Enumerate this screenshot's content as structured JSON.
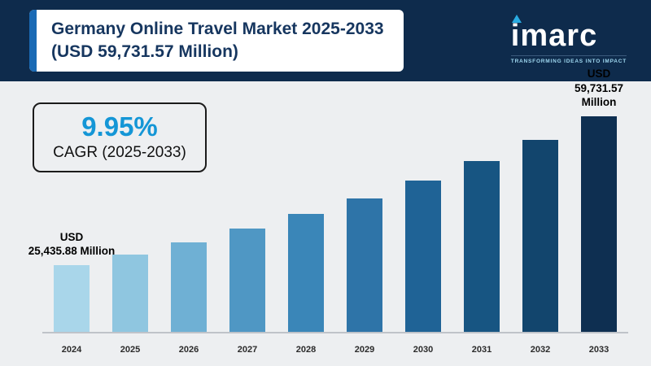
{
  "header": {
    "title_line1": "Germany Online Travel Market 2025-2033",
    "title_line2": "(USD 59,731.57 Million)",
    "logo": {
      "text": "imarc",
      "tagline": "TRANSFORMING IDEAS INTO IMPACT"
    }
  },
  "cagr": {
    "value": "9.95%",
    "label": "CAGR (2025-2033)"
  },
  "annotations": {
    "first_bar": [
      "USD",
      "25,435.88 Million"
    ],
    "last_bar": [
      "USD",
      "59,731.57",
      "Million"
    ]
  },
  "chart_data": {
    "type": "bar",
    "title": "Germany Online Travel Market 2025-2033",
    "unit": "USD Million",
    "categories": [
      "2024",
      "2025",
      "2026",
      "2027",
      "2028",
      "2029",
      "2030",
      "2031",
      "2032",
      "2033"
    ],
    "values": [
      25435.88,
      27965,
      30748,
      33807,
      37171,
      40870,
      44936,
      49407,
      54323,
      59731.57
    ],
    "cagr_percent": 9.95,
    "ylim": [
      0,
      62000
    ],
    "grid": false,
    "legend": "none",
    "bar_colors": [
      "#a9d6ea",
      "#8fc6e0",
      "#6fb0d4",
      "#4f97c4",
      "#3a86b8",
      "#2e74a8",
      "#1f6396",
      "#175582",
      "#12456d",
      "#0e2f51"
    ]
  },
  "colors": {
    "header_bg": "#0e2b4c",
    "title_text": "#16365f",
    "title_accent": "#1a6ab5",
    "cagr_value": "#1496d6",
    "logo_triangle": "#29abe2",
    "page_bg": "#edeff1"
  }
}
